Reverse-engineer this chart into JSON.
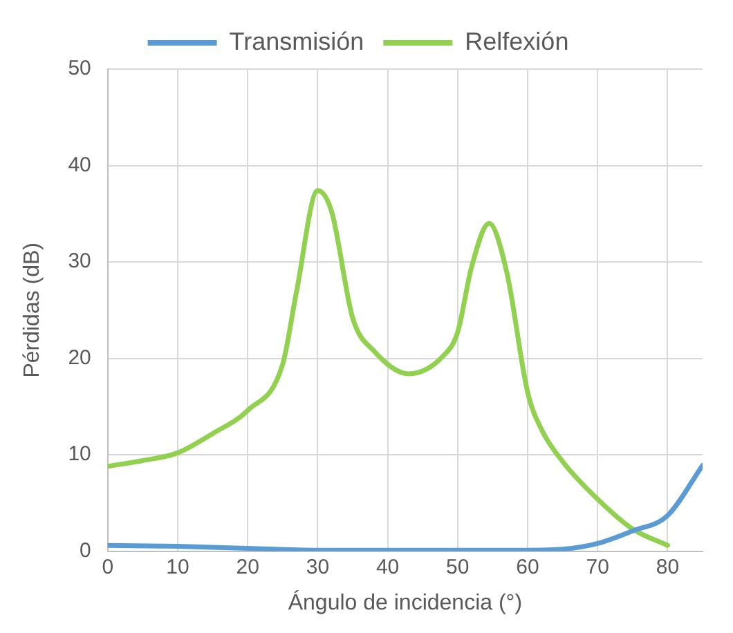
{
  "chart_data": {
    "type": "line",
    "xlabel": "Ángulo de incidencia (°)",
    "ylabel": "Pérdidas (dB)",
    "xlim": [
      0,
      85
    ],
    "xticks": [
      0,
      10,
      20,
      30,
      40,
      50,
      60,
      70,
      80
    ],
    "ylim": [
      0,
      50
    ],
    "yticks": [
      0,
      10,
      20,
      30,
      40,
      50
    ],
    "grid": true,
    "legend": "top",
    "marker": "none",
    "line_style": "solid",
    "series": [
      {
        "name": "Transmisión",
        "color": "#5b9bd5",
        "x": [
          0,
          10,
          20,
          30,
          40,
          50,
          60,
          65,
          70,
          75,
          80,
          85
        ],
        "values": [
          0.6,
          0.5,
          0.3,
          0.1,
          0.1,
          0.1,
          0.1,
          0.2,
          0.8,
          2.1,
          3.7,
          8.9
        ]
      },
      {
        "name": "Relfexión",
        "color": "#92d050",
        "x": [
          0,
          5,
          10,
          15,
          20,
          25,
          27,
          30,
          32,
          35,
          38,
          43,
          48,
          50,
          52,
          54.5,
          57,
          60,
          62,
          65,
          70,
          75,
          80
        ],
        "values": [
          8.8,
          9.4,
          10.2,
          12.2,
          14.6,
          19.4,
          27,
          37.4,
          35.2,
          24.2,
          20.8,
          18.4,
          20.3,
          22.7,
          29.5,
          34,
          29,
          16.5,
          12.6,
          9.3,
          5.4,
          2.3,
          0.6
        ]
      }
    ]
  }
}
